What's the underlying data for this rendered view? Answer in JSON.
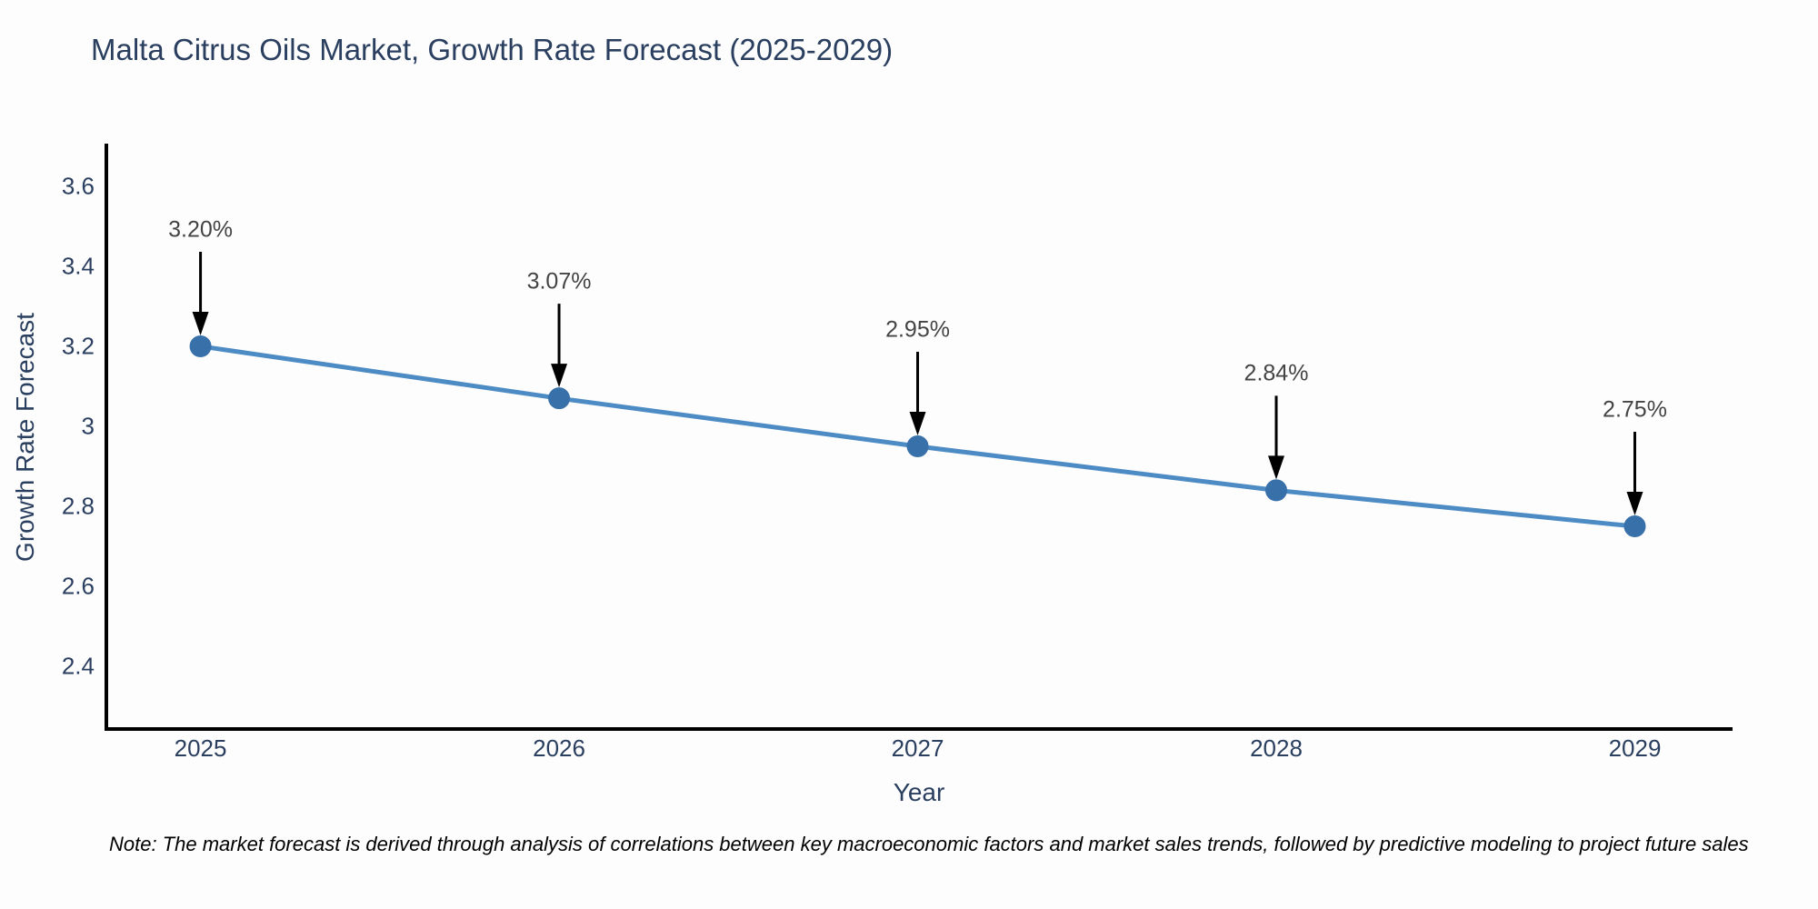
{
  "chart_data": {
    "type": "line",
    "title": "Malta Citrus Oils Market, Growth Rate Forecast (2025-2029)",
    "xlabel": "Year",
    "ylabel": "Growth Rate Forecast",
    "x": [
      2025,
      2026,
      2027,
      2028,
      2029
    ],
    "y": [
      3.2,
      3.07,
      2.95,
      2.84,
      2.75
    ],
    "point_labels": [
      "3.20%",
      "3.07%",
      "2.95%",
      "2.84%",
      "2.75%"
    ],
    "xtick_labels": [
      "2025",
      "2026",
      "2027",
      "2028",
      "2029"
    ],
    "xtick_values": [
      2025,
      2026,
      2027,
      2028,
      2029
    ],
    "ytick_labels": [
      "3.6",
      "3.4",
      "3.2",
      "3",
      "2.8",
      "2.6",
      "2.4"
    ],
    "ytick_values": [
      3.6,
      3.4,
      3.2,
      3.0,
      2.8,
      2.6,
      2.4
    ],
    "xlim": [
      2024.74,
      2029.27
    ],
    "ylim": [
      2.248,
      3.702
    ],
    "grid": false,
    "legend": false,
    "annotations_have_arrows": true,
    "colors": {
      "line": "#4d8bc4",
      "marker": "#3870aa",
      "arrow": "#000000",
      "title": "#2a3f5f",
      "tick": "#2a3f5f",
      "annotation": "#444444",
      "axis_line": "#000000",
      "note": "#000000"
    }
  },
  "note": {
    "text": "Note: The market forecast is derived through analysis of correlations between key macroeconomic factors and market sales trends, followed by predictive modeling to project future sales"
  }
}
